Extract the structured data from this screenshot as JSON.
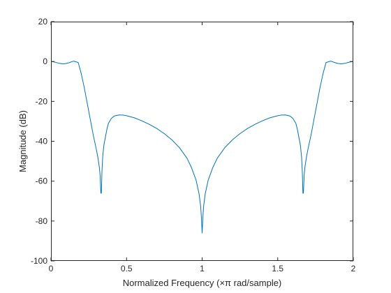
{
  "chart_data": {
    "type": "line",
    "title": "",
    "xlabel": "Normalized Frequency (×π rad/sample)",
    "ylabel": "Magnitude (dB)",
    "xlim": [
      0,
      2
    ],
    "ylim": [
      -100,
      20
    ],
    "xticks": [
      0,
      0.5,
      1,
      1.5,
      2
    ],
    "xtick_labels": [
      "0",
      "0.5",
      "1",
      "1.5",
      "2"
    ],
    "yticks": [
      20,
      0,
      -20,
      -40,
      -60,
      -80,
      -100
    ],
    "ytick_labels": [
      "20",
      "0",
      "-20",
      "-40",
      "-60",
      "-80",
      "-100"
    ],
    "grid": false,
    "line_color": "#0072BD",
    "series": [
      {
        "x": [
          0,
          0.02,
          0.05,
          0.08,
          0.1,
          0.12,
          0.15,
          0.18,
          0.2,
          0.22,
          0.24,
          0.26,
          0.28,
          0.3,
          0.31,
          0.32,
          0.325,
          0.33,
          0.3333,
          0.337,
          0.342,
          0.35,
          0.36,
          0.37,
          0.38,
          0.4,
          0.42,
          0.45,
          0.48,
          0.5,
          0.55,
          0.6,
          0.65,
          0.7,
          0.75,
          0.8,
          0.85,
          0.9,
          0.93,
          0.96,
          0.98,
          0.99,
          0.995,
          1.0,
          1.005,
          1.01,
          1.02,
          1.04,
          1.07,
          1.1,
          1.15,
          1.2,
          1.25,
          1.3,
          1.35,
          1.4,
          1.45,
          1.5,
          1.52,
          1.55,
          1.58,
          1.6,
          1.62,
          1.63,
          1.64,
          1.65,
          1.658,
          1.663,
          1.6667,
          1.67,
          1.675,
          1.68,
          1.69,
          1.7,
          1.72,
          1.74,
          1.76,
          1.78,
          1.8,
          1.82,
          1.85,
          1.88,
          1.9,
          1.92,
          1.95,
          1.98,
          2.0
        ],
        "y": [
          0,
          -0.2,
          -0.8,
          -1.2,
          -1.0,
          -0.6,
          0.2,
          -0.5,
          -6,
          -13,
          -21,
          -29,
          -37,
          -44,
          -48,
          -53,
          -57,
          -66,
          -66,
          -56,
          -48,
          -42,
          -38,
          -34,
          -31,
          -28.5,
          -27.3,
          -26.8,
          -26.9,
          -27.2,
          -28.2,
          -29.7,
          -31.5,
          -33.6,
          -36.2,
          -39.3,
          -43.2,
          -48.5,
          -53.3,
          -59.5,
          -66.5,
          -72.5,
          -78,
          -86,
          -78,
          -72.5,
          -66.5,
          -59.5,
          -53.3,
          -48.5,
          -43.2,
          -39.3,
          -36.2,
          -33.6,
          -31.5,
          -29.7,
          -28.2,
          -27.2,
          -26.9,
          -26.8,
          -27.3,
          -28.5,
          -31,
          -34,
          -38,
          -42,
          -48,
          -56,
          -66,
          -66,
          -57,
          -53,
          -48,
          -44,
          -37,
          -29,
          -21,
          -13,
          -6,
          -0.5,
          0.2,
          -0.6,
          -1.0,
          -1.2,
          -0.8,
          -0.2,
          0
        ]
      }
    ]
  }
}
